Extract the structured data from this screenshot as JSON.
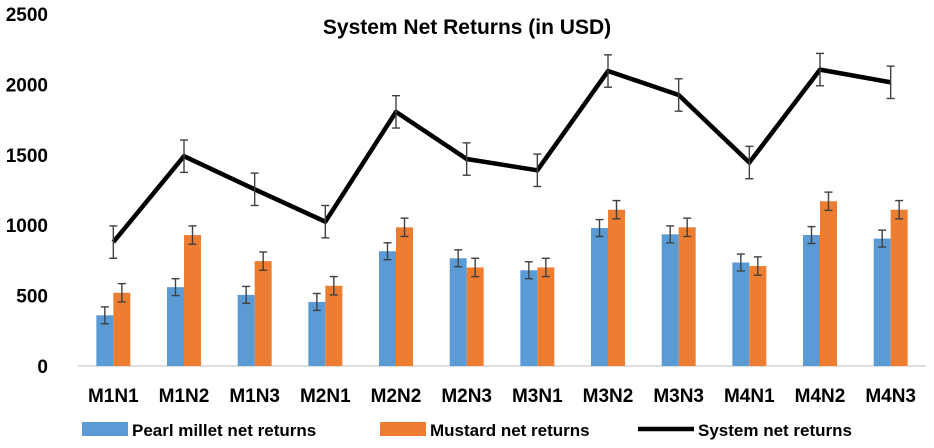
{
  "chart_data": {
    "type": "bar",
    "title": "System Net Returns (in USD)",
    "xlabel": "",
    "ylabel": "",
    "ylim": [
      0,
      2500
    ],
    "yticks": [
      0,
      500,
      1000,
      1500,
      2000,
      2500
    ],
    "categories": [
      "M1N1",
      "M1N2",
      "M1N3",
      "M2N1",
      "M2N2",
      "M2N3",
      "M3N1",
      "M3N2",
      "M3N3",
      "M4N1",
      "M4N2",
      "M4N3"
    ],
    "series": [
      {
        "name": "Pearl millet net returns",
        "type": "bar",
        "color": "#5B9BD5",
        "values": [
          360,
          560,
          505,
          455,
          815,
          765,
          680,
          980,
          935,
          735,
          930,
          905
        ],
        "errors": [
          60,
          60,
          60,
          60,
          60,
          60,
          60,
          60,
          60,
          60,
          60,
          60
        ]
      },
      {
        "name": "Mustard net returns",
        "type": "bar",
        "color": "#ED7D31",
        "values": [
          520,
          930,
          745,
          570,
          985,
          700,
          700,
          1110,
          985,
          710,
          1170,
          1110
        ],
        "errors": [
          65,
          65,
          65,
          65,
          65,
          65,
          65,
          65,
          65,
          65,
          65,
          65
        ]
      },
      {
        "name": "System net returns",
        "type": "line",
        "color": "#000000",
        "values": [
          880,
          1490,
          1255,
          1025,
          1805,
          1470,
          1390,
          2095,
          1925,
          1445,
          2105,
          2015
        ],
        "errors": [
          115,
          115,
          115,
          115,
          115,
          115,
          115,
          115,
          115,
          115,
          115,
          115
        ]
      }
    ],
    "grid": false,
    "legend_position": "bottom"
  }
}
